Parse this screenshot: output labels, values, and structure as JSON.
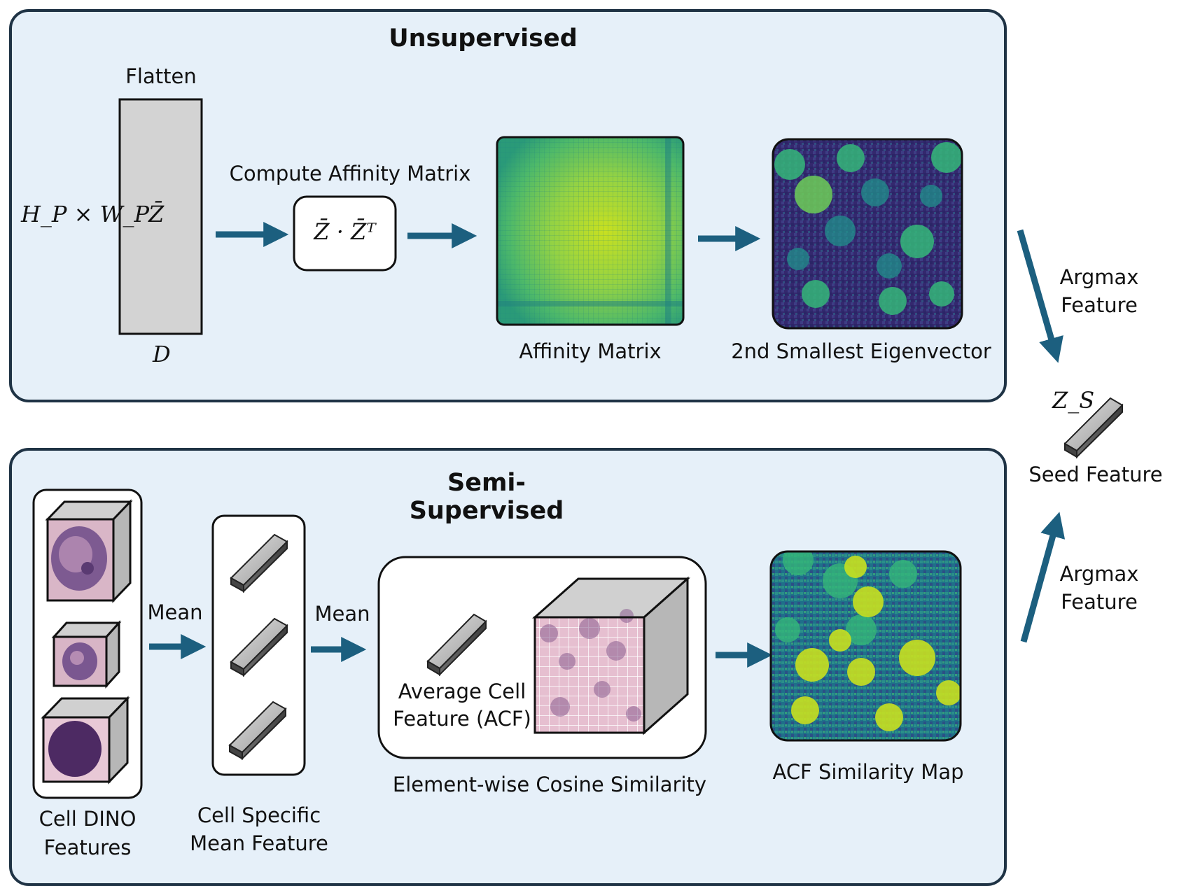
{
  "unsupervised": {
    "title": "Unsupervised",
    "flatten_label": "Flatten",
    "rows_label": "H_P × W_P",
    "matrix_symbol": "Z̄",
    "cols_label": "D",
    "compute_label": "Compute Affinity Matrix",
    "formula": "Z̄ · Z̄ᵀ",
    "affinity_label": "Affinity Matrix",
    "eigen_label": "2nd Smallest Eigenvector"
  },
  "semi_supervised": {
    "title": "Semi-Supervised",
    "cell_features_label_1": "Cell DINO",
    "cell_features_label_2": "Features",
    "mean_label_1": "Mean",
    "cell_mean_label_1": "Cell Specific",
    "cell_mean_label_2": "Mean Feature",
    "mean_label_2": "Mean",
    "acf_label_1": "Average Cell",
    "acf_label_2": "Feature (ACF)",
    "cosine_label": "Element-wise Cosine Similarity",
    "acf_map_label": "ACF Similarity Map"
  },
  "right": {
    "argmax_top_1": "Argmax",
    "argmax_top_2": "Feature",
    "seed_symbol": "Z_S",
    "seed_label": "Seed Feature",
    "argmax_bottom_1": "Argmax",
    "argmax_bottom_2": "Feature"
  },
  "colors": {
    "panel_fill": "#e6f0f9",
    "panel_border": "#1f3345",
    "arrow": "#1c5f7f",
    "viridis_dark": "#3b1f6b",
    "viridis_mid": "#21908c",
    "viridis_bright": "#c8e020"
  }
}
